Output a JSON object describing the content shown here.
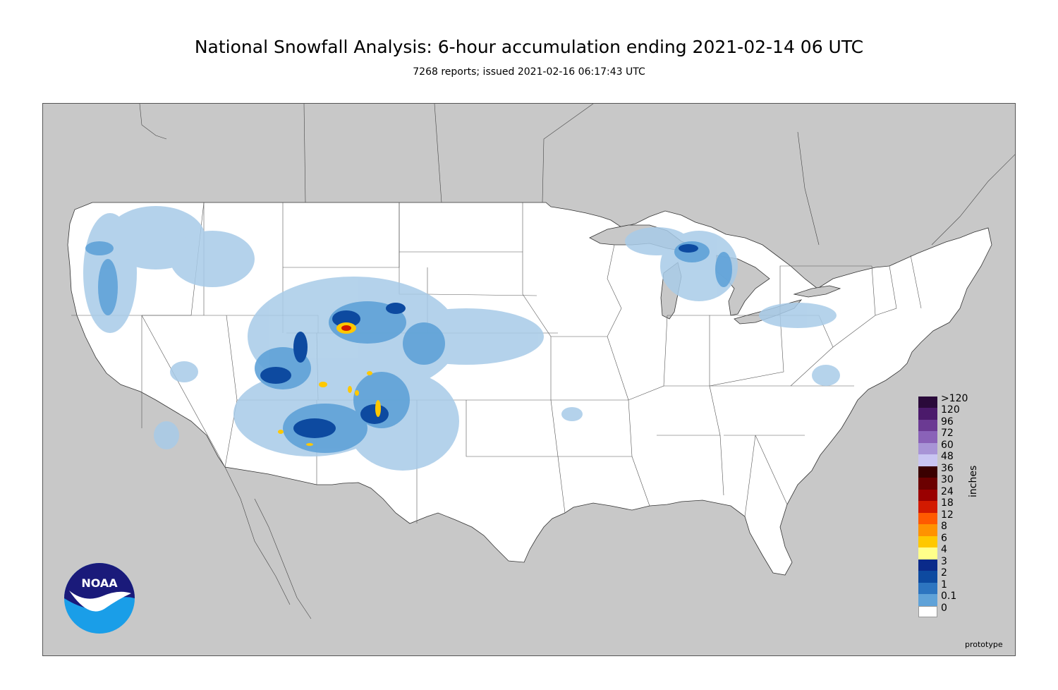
{
  "header": {
    "title": "National Snowfall Analysis: 6-hour accumulation ending 2021-02-14 06 UTC",
    "subtitle": "7268 reports; issued 2021-02-16 06:17:43 UTC"
  },
  "map": {
    "land_color": "#ffffff",
    "outside_color": "#c8c8c8",
    "water_color": "#c8c8c8"
  },
  "legend": {
    "units": "inches",
    "levels": [
      {
        "label": ">120",
        "color": "#2a0a3a"
      },
      {
        "label": "120",
        "color": "#4b1a6b"
      },
      {
        "label": "96",
        "color": "#6b3a93"
      },
      {
        "label": "72",
        "color": "#8a62b8"
      },
      {
        "label": "60",
        "color": "#a894d6"
      },
      {
        "label": "48",
        "color": "#c9c5f2"
      },
      {
        "label": "36",
        "color": "#3a0000"
      },
      {
        "label": "30",
        "color": "#6b0000"
      },
      {
        "label": "24",
        "color": "#9a0000"
      },
      {
        "label": "18",
        "color": "#d21a00"
      },
      {
        "label": "12",
        "color": "#ff5a00"
      },
      {
        "label": "8",
        "color": "#ff9200"
      },
      {
        "label": "6",
        "color": "#ffc800"
      },
      {
        "label": "4",
        "color": "#ffff8a"
      },
      {
        "label": "3",
        "color": "#0a2a8a"
      },
      {
        "label": "2",
        "color": "#0d4aa0"
      },
      {
        "label": "1",
        "color": "#2d75c0"
      },
      {
        "label": "0.1",
        "color": "#5fa2d8"
      },
      {
        "label": "0",
        "color": "#a8cbe8"
      }
    ]
  },
  "footer": {
    "note": "prototype",
    "logo_text": "NOAA"
  }
}
